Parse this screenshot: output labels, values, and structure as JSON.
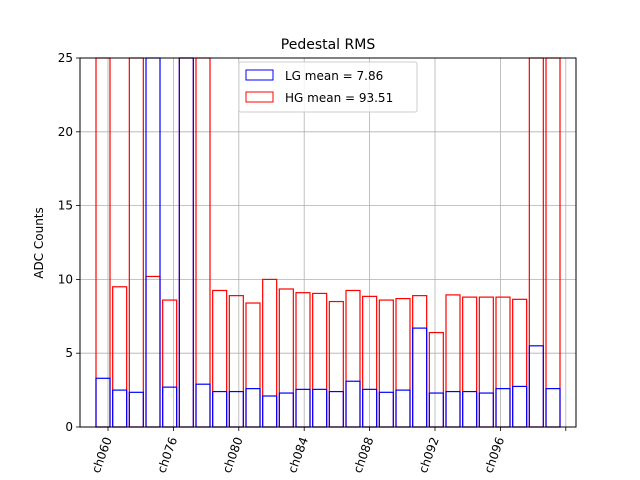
{
  "chart_data": {
    "type": "bar",
    "title": "Pedestal RMS",
    "xlabel": "",
    "ylabel": "ADC Counts",
    "ylim": [
      0,
      25
    ],
    "yticks": [
      0,
      5,
      10,
      15,
      20,
      25
    ],
    "grid": true,
    "legend_position": "top-center",
    "xtick_labels": [
      "ch060",
      "ch076",
      "ch080",
      "ch084",
      "ch088",
      "ch092",
      "ch096",
      ""
    ],
    "bar_count": 28,
    "series": [
      {
        "name": "LG mean = 7.86",
        "color": "#0000ff",
        "values": [
          3.3,
          2.5,
          2.35,
          25,
          2.7,
          25,
          2.9,
          2.4,
          2.4,
          2.6,
          2.1,
          2.3,
          2.55,
          2.55,
          2.4,
          3.1,
          2.55,
          2.35,
          2.5,
          6.7,
          2.3,
          2.4,
          2.4,
          2.3,
          2.6,
          2.75,
          5.5,
          2.6
        ]
      },
      {
        "name": "HG mean = 93.51",
        "color": "#ff0000",
        "values": [
          25,
          9.5,
          25,
          10.2,
          8.6,
          25,
          25,
          9.25,
          8.9,
          8.4,
          10.0,
          9.35,
          9.1,
          9.05,
          8.5,
          9.25,
          8.85,
          8.6,
          8.7,
          8.9,
          6.4,
          8.95,
          8.8,
          8.8,
          8.8,
          8.65,
          25,
          25
        ]
      }
    ]
  }
}
